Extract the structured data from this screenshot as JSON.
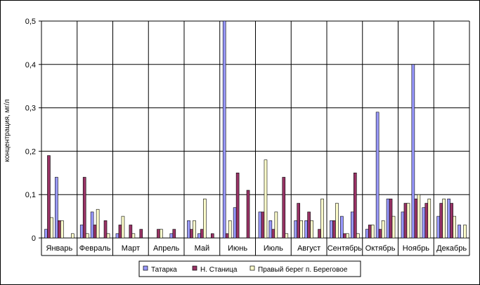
{
  "chart_data": {
    "type": "bar",
    "title": "",
    "xlabel": "",
    "ylabel": "концентрация, мг/л",
    "ylim": [
      0,
      0.5
    ],
    "yticks": [
      "0",
      "0,1",
      "0,2",
      "0,3",
      "0,4",
      "0,5"
    ],
    "grid": true,
    "legend_position": "bottom",
    "categories": [
      "Январь",
      "Февраль",
      "Март",
      "Апрель",
      "Май",
      "Июнь",
      "Июль",
      "Август",
      "Сентябрь",
      "Октябрь",
      "Ноябрь",
      "Декабрь"
    ],
    "series_colors": [
      "#9999ff",
      "#993366",
      "#ffffcc"
    ],
    "series": [
      {
        "name": "Татарка",
        "points": [
          [
            0,
            0.02
          ],
          [
            0,
            0.14
          ],
          [
            1,
            0.03
          ],
          [
            1,
            0.06
          ],
          [
            2,
            0.01
          ],
          [
            3,
            0.0
          ],
          [
            3,
            0.01
          ],
          [
            4,
            0.04
          ],
          [
            4,
            0.01
          ],
          [
            5,
            0.5
          ],
          [
            5,
            0.07
          ],
          [
            6,
            0.06
          ],
          [
            6,
            0.04
          ],
          [
            7,
            0.04
          ],
          [
            7,
            0.04
          ],
          [
            8,
            0.04
          ],
          [
            8,
            0.05
          ],
          [
            8,
            0.06
          ],
          [
            9,
            0.02
          ],
          [
            9,
            0.29
          ],
          [
            9,
            0.09
          ],
          [
            10,
            0.06
          ],
          [
            10,
            0.4
          ],
          [
            10,
            0.07
          ],
          [
            11,
            0.05
          ],
          [
            11,
            0.09
          ],
          [
            11,
            0.03
          ]
        ]
      },
      {
        "name": "Н. Станица",
        "points": [
          [
            0,
            0.19
          ],
          [
            0,
            0.04
          ],
          [
            1,
            0.14
          ],
          [
            1,
            0.03
          ],
          [
            1,
            0.04
          ],
          [
            2,
            0.03
          ],
          [
            2,
            0.03
          ],
          [
            2,
            0.02
          ],
          [
            3,
            0.02
          ],
          [
            3,
            0.02
          ],
          [
            4,
            0.02
          ],
          [
            4,
            0.02
          ],
          [
            4,
            0.01
          ],
          [
            5,
            0.01
          ],
          [
            5,
            0.15
          ],
          [
            5,
            0.11
          ],
          [
            6,
            0.06
          ],
          [
            6,
            0.02
          ],
          [
            6,
            0.14
          ],
          [
            7,
            0.08
          ],
          [
            7,
            0.06
          ],
          [
            7,
            0.02
          ],
          [
            8,
            0.04
          ],
          [
            8,
            0.01
          ],
          [
            8,
            0.15
          ],
          [
            9,
            0.03
          ],
          [
            9,
            0.02
          ],
          [
            9,
            0.09
          ],
          [
            10,
            0.08
          ],
          [
            10,
            0.09
          ],
          [
            10,
            0.08
          ],
          [
            11,
            0.08
          ],
          [
            11,
            0.08
          ]
        ]
      },
      {
        "name": "Правый берег п. Береговое",
        "points": [
          [
            0,
            0.047
          ],
          [
            0,
            0.04
          ],
          [
            0,
            0.01
          ],
          [
            1,
            0.01
          ],
          [
            1,
            0.066
          ],
          [
            1,
            0.01
          ],
          [
            2,
            0.05
          ],
          [
            2,
            0.01
          ],
          [
            3,
            0.02
          ],
          [
            4,
            0.04
          ],
          [
            4,
            0.09
          ],
          [
            5,
            0.04
          ],
          [
            6,
            0.18
          ],
          [
            6,
            0.06
          ],
          [
            6,
            0.01
          ],
          [
            7,
            0.04
          ],
          [
            7,
            0.04
          ],
          [
            7,
            0.09
          ],
          [
            8,
            0.08
          ],
          [
            8,
            0.01
          ],
          [
            8,
            0.01
          ],
          [
            9,
            0.03
          ],
          [
            9,
            0.04
          ],
          [
            9,
            0.05
          ],
          [
            10,
            0.08
          ],
          [
            10,
            0.1
          ],
          [
            10,
            0.09
          ],
          [
            11,
            0.09
          ],
          [
            11,
            0.05
          ],
          [
            11,
            0.03
          ]
        ]
      }
    ]
  }
}
